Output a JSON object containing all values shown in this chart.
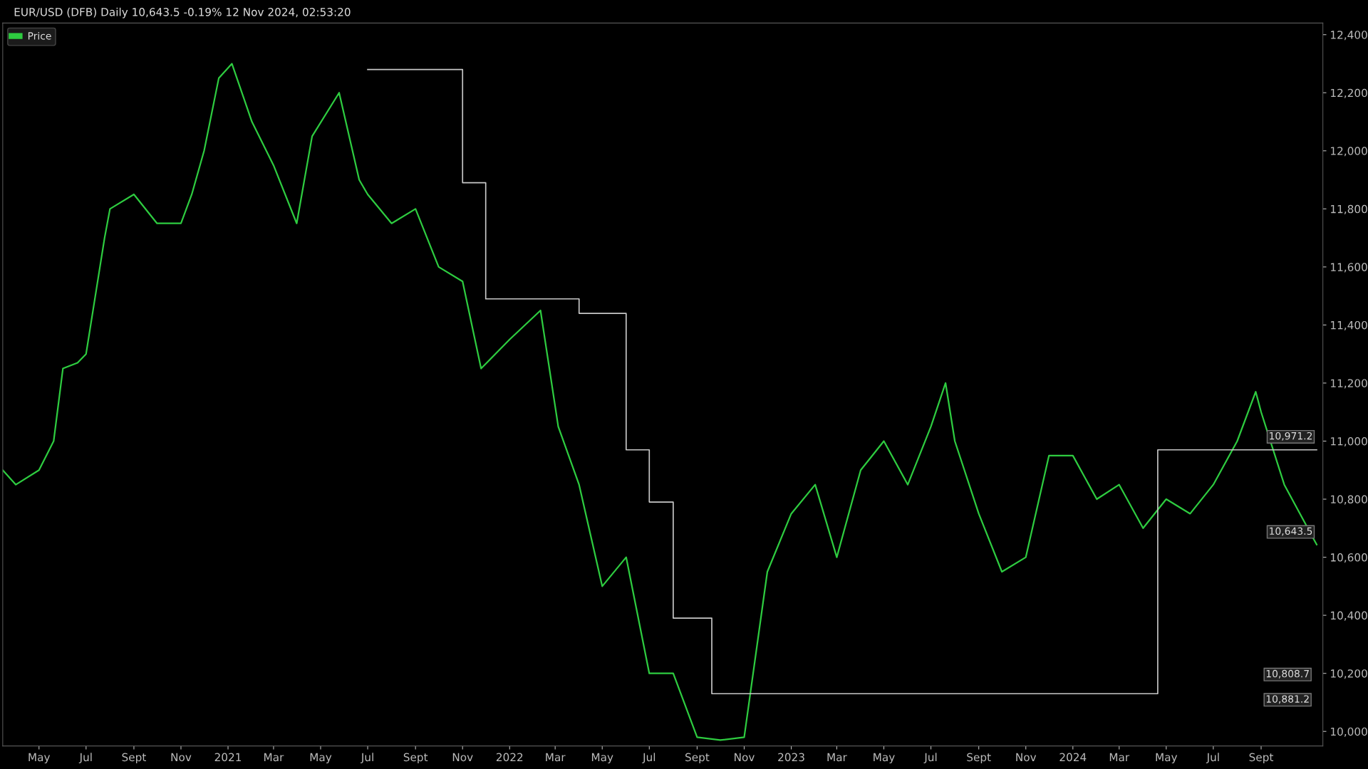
{
  "chart_data": {
    "type": "line",
    "title": "EUR/USD (DFB) Daily 10,643.5 -0.19% 12 Nov 2024, 02:53:20",
    "legend": "top left",
    "grid": false,
    "marker": "none",
    "line_style": "solid",
    "xlim": [
      "2020-03-15",
      "2024-11-20"
    ],
    "xticks": [
      {
        "value": "2020-05-01",
        "label": "May"
      },
      {
        "value": "2020-07-01",
        "label": "Jul"
      },
      {
        "value": "2020-09-01",
        "label": "Sept"
      },
      {
        "value": "2020-11-01",
        "label": "Nov"
      },
      {
        "value": "2021-01-01",
        "label": "2021"
      },
      {
        "value": "2021-03-01",
        "label": "Mar"
      },
      {
        "value": "2021-05-01",
        "label": "May"
      },
      {
        "value": "2021-07-01",
        "label": "Jul"
      },
      {
        "value": "2021-09-01",
        "label": "Sept"
      },
      {
        "value": "2021-11-01",
        "label": "Nov"
      },
      {
        "value": "2022-01-01",
        "label": "2022"
      },
      {
        "value": "2022-03-01",
        "label": "Mar"
      },
      {
        "value": "2022-05-01",
        "label": "May"
      },
      {
        "value": "2022-07-01",
        "label": "Jul"
      },
      {
        "value": "2022-09-01",
        "label": "Sept"
      },
      {
        "value": "2022-11-01",
        "label": "Nov"
      },
      {
        "value": "2023-01-01",
        "label": "2023"
      },
      {
        "value": "2023-03-01",
        "label": "Mar"
      },
      {
        "value": "2023-05-01",
        "label": "May"
      },
      {
        "value": "2023-07-01",
        "label": "Jul"
      },
      {
        "value": "2023-09-01",
        "label": "Sept"
      },
      {
        "value": "2023-11-01",
        "label": "Nov"
      },
      {
        "value": "2024-01-01",
        "label": "2024"
      },
      {
        "value": "2024-03-01",
        "label": "Mar"
      },
      {
        "value": "2024-05-01",
        "label": "May"
      },
      {
        "value": "2024-07-01",
        "label": "Jul"
      },
      {
        "value": "2024-09-01",
        "label": "Sept"
      }
    ],
    "ylim": [
      9950,
      12440
    ],
    "yticks": [
      {
        "value": 10000,
        "label": "10,000"
      },
      {
        "value": 10200,
        "label": "10,200"
      },
      {
        "value": 10400,
        "label": "10,400"
      },
      {
        "value": 10600,
        "label": "10,600"
      },
      {
        "value": 10800,
        "label": "10,800"
      },
      {
        "value": 11000,
        "label": "11,000"
      },
      {
        "value": 11200,
        "label": "11,200"
      },
      {
        "value": 11400,
        "label": "11,400"
      },
      {
        "value": 11600,
        "label": "11,600"
      },
      {
        "value": 11800,
        "label": "11,800"
      },
      {
        "value": 12000,
        "label": "12,000"
      },
      {
        "value": 12200,
        "label": "12,200"
      },
      {
        "value": 12400,
        "label": "12,400"
      }
    ],
    "series": [
      {
        "name": "Price",
        "color": "#2ecc40",
        "x": [
          "2020-03-15",
          "2020-04-01",
          "2020-05-01",
          "2020-05-20",
          "2020-06-01",
          "2020-06-20",
          "2020-07-01",
          "2020-07-25",
          "2020-08-01",
          "2020-09-01",
          "2020-10-01",
          "2020-11-01",
          "2020-11-15",
          "2020-12-01",
          "2020-12-20",
          "2021-01-06",
          "2021-02-01",
          "2021-03-01",
          "2021-03-31",
          "2021-04-20",
          "2021-05-25",
          "2021-06-20",
          "2021-07-01",
          "2021-08-01",
          "2021-09-01",
          "2021-10-01",
          "2021-11-01",
          "2021-11-25",
          "2022-01-01",
          "2022-02-10",
          "2022-03-05",
          "2022-04-01",
          "2022-05-01",
          "2022-06-01",
          "2022-07-01",
          "2022-08-01",
          "2022-09-01",
          "2022-10-01",
          "2022-11-01",
          "2022-12-01",
          "2023-01-01",
          "2023-02-01",
          "2023-03-01",
          "2023-04-01",
          "2023-05-01",
          "2023-06-01",
          "2023-07-01",
          "2023-07-20",
          "2023-08-01",
          "2023-09-01",
          "2023-10-01",
          "2023-11-01",
          "2023-12-01",
          "2024-01-01",
          "2024-02-01",
          "2024-03-01",
          "2024-04-01",
          "2024-05-01",
          "2024-06-01",
          "2024-07-01",
          "2024-08-01",
          "2024-08-25",
          "2024-09-01",
          "2024-10-01",
          "2024-11-12"
        ],
        "values": [
          10900,
          10850,
          10900,
          11000,
          11250,
          11270,
          11300,
          11700,
          11800,
          11850,
          11750,
          11750,
          11850,
          12000,
          12250,
          12300,
          12100,
          11950,
          11750,
          12050,
          12200,
          11900,
          11850,
          11750,
          11800,
          11600,
          11550,
          11250,
          11350,
          11450,
          11050,
          10850,
          10500,
          10600,
          10200,
          10200,
          9980,
          9970,
          9980,
          10550,
          10750,
          10850,
          10600,
          10900,
          11000,
          10850,
          11050,
          11200,
          11000,
          10750,
          10550,
          10600,
          10950,
          10950,
          10800,
          10850,
          10700,
          10800,
          10750,
          10850,
          11000,
          11170,
          11100,
          10850,
          10643.5
        ]
      },
      {
        "type": "step",
        "color": "#c8c8c8",
        "x": [
          "2021-07-01",
          "2021-11-01",
          "2021-12-01",
          "2022-04-01",
          "2022-06-01",
          "2022-07-01",
          "2022-08-01",
          "2022-09-20",
          "2024-04-20",
          "2024-11-12"
        ],
        "values": [
          12280,
          11890,
          11490,
          11440,
          10970,
          10790,
          10390,
          10130,
          10970,
          10970
        ]
      }
    ],
    "annotations": [
      {
        "text": "10,971.2",
        "x": "2024-11-12",
        "y": 10971.2
      },
      "10,881.2",
      "10,808.7",
      {
        "text": "10,643.5",
        "x": "2024-11-12",
        "y": 10643.5
      }
    ]
  }
}
